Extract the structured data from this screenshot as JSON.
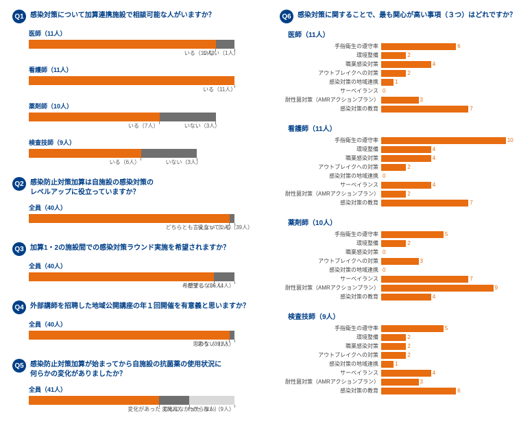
{
  "colors": {
    "orange": "#e86c10",
    "gray": "#6f6f6f",
    "light": "#d9d9d9",
    "blue": "#003f87",
    "valcolor": "#e86c10"
  },
  "left": {
    "questions": [
      {
        "id": "Q1",
        "title": "感染対策について加算連携施設で相談可能な人がいますか？",
        "rows": [
          {
            "label": "医師（11人）",
            "total": 11,
            "segs": [
              {
                "v": 10,
                "c": "#e86c10"
              },
              {
                "v": 1,
                "c": "#6f6f6f"
              }
            ],
            "lbls": [
              {
                "t": "いる（10人）",
                "at": 10
              },
              {
                "t": "いない（1人）",
                "at": 11
              }
            ]
          },
          {
            "label": "看護師（11人）",
            "total": 11,
            "segs": [
              {
                "v": 11,
                "c": "#e86c10"
              }
            ],
            "lbls": [
              {
                "t": "いる（11人）",
                "at": 11
              }
            ]
          },
          {
            "label": "薬剤師（10人）",
            "total": 11,
            "segs": [
              {
                "v": 7,
                "c": "#e86c10"
              },
              {
                "v": 3,
                "c": "#6f6f6f"
              }
            ],
            "lbls": [
              {
                "t": "いる（7人）",
                "at": 7
              },
              {
                "t": "いない（3人）",
                "at": 10
              }
            ]
          },
          {
            "label": "検査技師（9人）",
            "total": 11,
            "segs": [
              {
                "v": 6,
                "c": "#e86c10"
              },
              {
                "v": 3,
                "c": "#6f6f6f"
              }
            ],
            "lbls": [
              {
                "t": "いる（6人）",
                "at": 6
              },
              {
                "t": "いない（3人）",
                "at": 9
              }
            ]
          }
        ]
      },
      {
        "id": "Q2",
        "title": "感染防止対策加算は自施設の感染対策の\nレベルアップに役立っていますか？",
        "rows": [
          {
            "label": "全員（40人）",
            "total": 40,
            "segs": [
              {
                "v": 39,
                "c": "#e86c10"
              },
              {
                "v": 1,
                "c": "#6f6f6f"
              }
            ],
            "lbls": [
              {
                "t": "役立っている（39人）",
                "at": 39
              },
              {
                "t": "どちらとも言えない（1人）",
                "at": 40,
                "anchor": "end"
              }
            ]
          }
        ]
      },
      {
        "id": "Q3",
        "title": "加算1・2の施設間での感染対策ラウンド実施を希望されますか？",
        "rows": [
          {
            "label": "全員（40人）",
            "total": 40,
            "segs": [
              {
                "v": 36,
                "c": "#e86c10"
              },
              {
                "v": 4,
                "c": "#6f6f6f"
              }
            ],
            "lbls": [
              {
                "t": "希望する（36人）",
                "at": 36
              },
              {
                "t": "希望しない（4人）",
                "at": 40,
                "anchor": "end"
              }
            ]
          }
        ]
      },
      {
        "id": "Q4",
        "title": "外部講師を招聘した地域公開講座の年１回開催を有意義と思いますか？",
        "rows": [
          {
            "label": "全員（40人）",
            "total": 40,
            "segs": [
              {
                "v": 39,
                "c": "#e86c10"
              },
              {
                "v": 1,
                "c": "#6f6f6f"
              }
            ],
            "lbls": [
              {
                "t": "思う（39人）",
                "at": 39
              },
              {
                "t": "思わない（1人）",
                "at": 40,
                "anchor": "end"
              }
            ]
          }
        ]
      },
      {
        "id": "Q5",
        "title": "感染防止対策加算が始まってから自施設の抗菌薬の使用状況に\n何らかの変化がありましたか？",
        "rows": [
          {
            "label": "全員（41人）",
            "total": 41,
            "segs": [
              {
                "v": 26,
                "c": "#e86c10"
              },
              {
                "v": 6,
                "c": "#6f6f6f"
              },
              {
                "v": 9,
                "c": "#d9d9d9"
              }
            ],
            "lbls": [
              {
                "t": "変化があった（26人）",
                "at": 26
              },
              {
                "t": "変化はなかった（6人）",
                "at": 32,
                "anchor": "mid"
              },
              {
                "t": "わからない（9人）",
                "at": 41,
                "anchor": "end"
              }
            ]
          }
        ]
      }
    ]
  },
  "right": {
    "id": "Q6",
    "title": "感染対策に関することで、最も関心が高い事項（３つ）はどれですか？",
    "max": 11,
    "cats": [
      "手指衛生の遵守率",
      "環境整備",
      "職業感染対策",
      "アウトブレイクへの対策",
      "感染対策の地域連携",
      "サーベイランス",
      "耐性菌対策（AMRアクションプラン）",
      "感染対策の教育"
    ],
    "groups": [
      {
        "title": "医師（11人）",
        "vals": [
          6,
          2,
          4,
          2,
          1,
          0,
          3,
          7
        ]
      },
      {
        "title": "看護師（11人）",
        "vals": [
          10,
          4,
          4,
          2,
          0,
          4,
          2,
          7
        ]
      },
      {
        "title": "薬剤師（10人）",
        "vals": [
          5,
          2,
          0,
          3,
          0,
          7,
          9,
          4
        ]
      },
      {
        "title": "検査技師（9人）",
        "vals": [
          5,
          2,
          2,
          2,
          1,
          4,
          3,
          6
        ]
      }
    ]
  }
}
